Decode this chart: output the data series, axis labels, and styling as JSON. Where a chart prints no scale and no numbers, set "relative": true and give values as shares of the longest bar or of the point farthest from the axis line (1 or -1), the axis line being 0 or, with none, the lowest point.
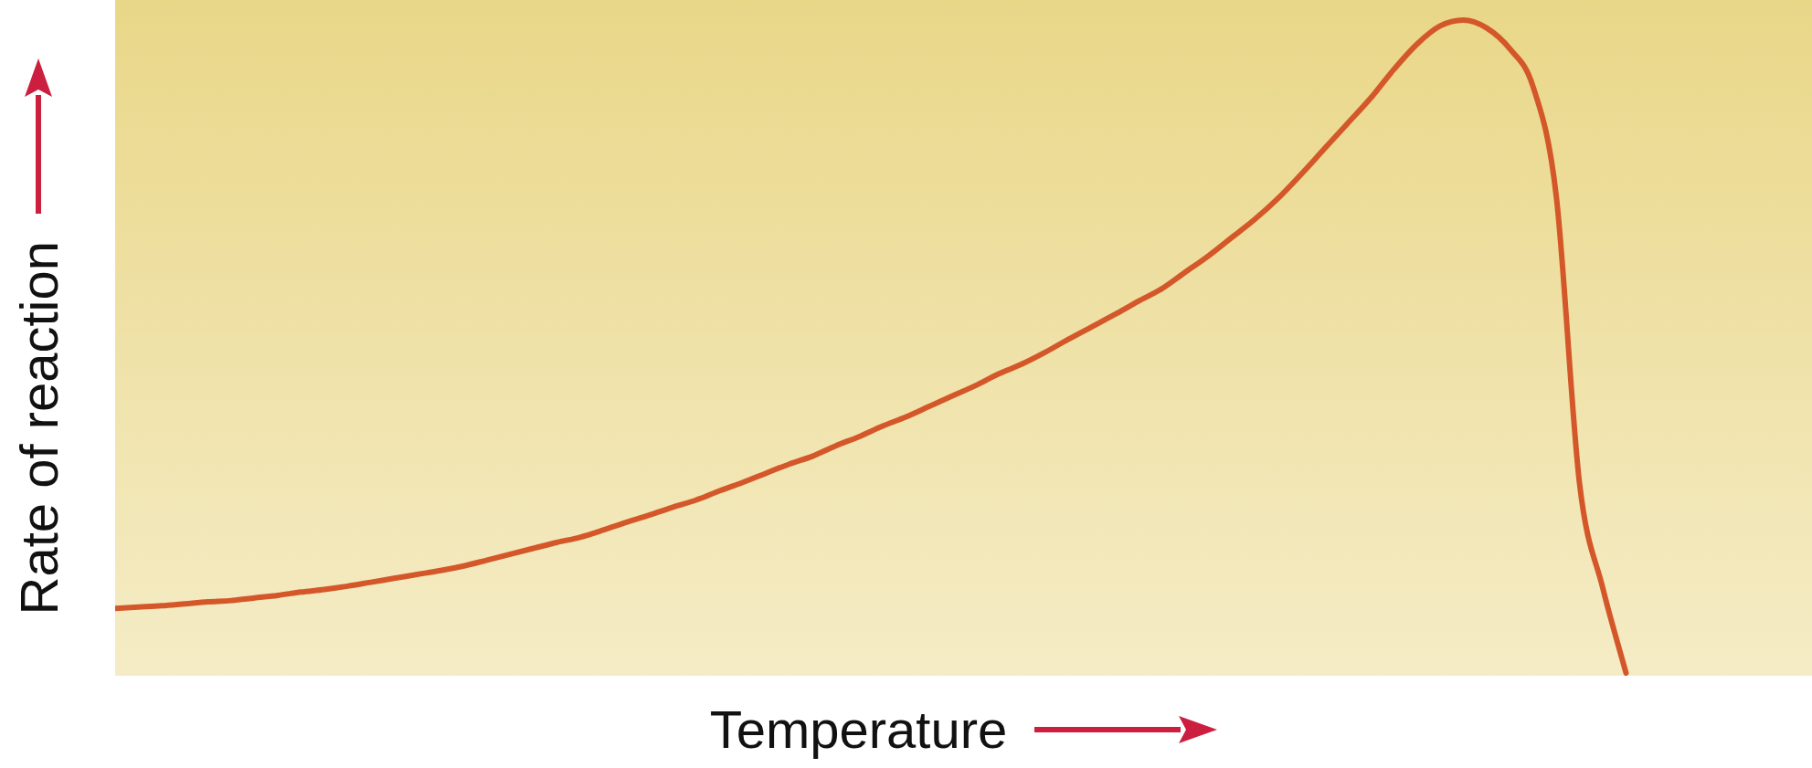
{
  "chart_data": {
    "type": "line",
    "relative": true,
    "xlabel": "Temperature",
    "ylabel": "Rate of reaction",
    "legend": false,
    "marker": "none",
    "line_style": "solid",
    "categories": [
      null,
      null,
      null,
      null,
      null,
      null,
      null,
      null,
      null,
      null,
      null,
      null,
      null,
      null,
      null,
      null,
      null,
      null,
      null,
      null,
      null,
      null,
      null,
      null,
      null,
      null,
      null,
      null,
      null,
      null,
      null,
      null,
      null,
      null,
      null,
      null,
      null,
      null,
      null,
      null,
      null,
      null,
      null,
      null,
      null,
      null,
      null,
      null,
      null,
      null,
      null,
      null,
      null,
      null,
      null,
      null,
      null,
      null,
      null,
      null,
      null,
      null,
      null,
      null,
      null,
      null,
      null,
      null,
      null,
      null,
      null,
      null,
      null,
      null
    ],
    "series": [
      {
        "color": "#d4572a",
        "values": [
          0.099,
          0.101,
          0.103,
          0.106,
          0.109,
          0.111,
          0.115,
          0.119,
          0.124,
          0.128,
          0.133,
          0.139,
          0.145,
          0.151,
          0.157,
          0.164,
          0.173,
          0.182,
          0.191,
          0.2,
          0.208,
          0.219,
          0.231,
          0.242,
          0.254,
          0.265,
          0.279,
          0.292,
          0.306,
          0.32,
          0.332,
          0.348,
          0.362,
          0.378,
          0.392,
          0.408,
          0.424,
          0.44,
          0.458,
          0.473,
          0.491,
          0.511,
          0.53,
          0.549,
          0.569,
          0.588,
          0.613,
          0.638,
          0.666,
          0.694,
          0.726,
          0.763,
          0.802,
          0.841,
          0.88,
          0.924,
          0.963,
          0.991,
          1,
          0.988,
          0.956,
          0.898,
          0.73,
          0.29,
          0.13,
          0,
          null,
          null,
          null,
          null,
          null,
          null,
          null,
          null
        ]
      }
    ]
  }
}
